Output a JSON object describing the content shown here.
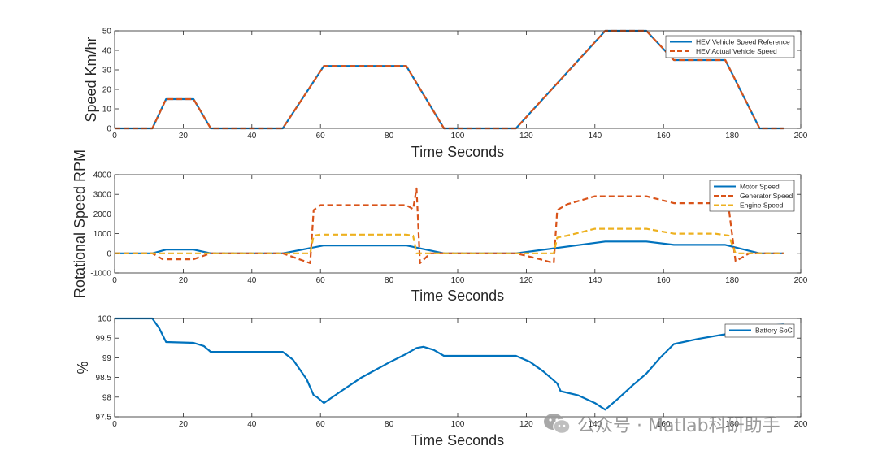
{
  "chart_data": [
    {
      "type": "line",
      "xlabel": "Time Seconds",
      "ylabel": "Speed Km/hr",
      "xlim": [
        0,
        200
      ],
      "ylim": [
        0,
        50
      ],
      "xticks": [
        "0",
        "20",
        "40",
        "60",
        "80",
        "100",
        "120",
        "140",
        "160",
        "180",
        "200"
      ],
      "yticks": [
        "0",
        "10",
        "20",
        "30",
        "40",
        "50"
      ],
      "grid": false,
      "legend_position": "top-right",
      "series": [
        {
          "name": "HEV Vehicle Speed Reference",
          "color": "#0072BD",
          "style": "solid",
          "points": [
            [
              0,
              0
            ],
            [
              11,
              0
            ],
            [
              15,
              15
            ],
            [
              23,
              15
            ],
            [
              28,
              0
            ],
            [
              49,
              0
            ],
            [
              61,
              32
            ],
            [
              85,
              32
            ],
            [
              96,
              0
            ],
            [
              117,
              0
            ],
            [
              143,
              50
            ],
            [
              155,
              50
            ],
            [
              163,
              35
            ],
            [
              178,
              35
            ],
            [
              188,
              0
            ],
            [
              195,
              0
            ]
          ]
        },
        {
          "name": "HEV Actual Vehicle Speed",
          "color": "#D95319",
          "style": "dashed",
          "points": [
            [
              0,
              0
            ],
            [
              11,
              0
            ],
            [
              15,
              15
            ],
            [
              23,
              15
            ],
            [
              28,
              0
            ],
            [
              49,
              0
            ],
            [
              61,
              32
            ],
            [
              85,
              32
            ],
            [
              96,
              0
            ],
            [
              117,
              0
            ],
            [
              143,
              50
            ],
            [
              155,
              50
            ],
            [
              163,
              35
            ],
            [
              178,
              35
            ],
            [
              188,
              0
            ],
            [
              195,
              0
            ]
          ]
        }
      ]
    },
    {
      "type": "line",
      "xlabel": "Time Seconds",
      "ylabel": "Rotational Speed RPM",
      "xlim": [
        0,
        200
      ],
      "ylim": [
        -1000,
        4000
      ],
      "xticks": [
        "0",
        "20",
        "40",
        "60",
        "80",
        "100",
        "120",
        "140",
        "160",
        "180",
        "200"
      ],
      "yticks": [
        "-1000",
        "0",
        "1000",
        "2000",
        "3000",
        "4000"
      ],
      "grid": false,
      "legend_position": "top-right",
      "series": [
        {
          "name": "Motor Speed",
          "color": "#0072BD",
          "style": "solid",
          "points": [
            [
              0,
              0
            ],
            [
              11,
              0
            ],
            [
              15,
              190
            ],
            [
              23,
              190
            ],
            [
              28,
              0
            ],
            [
              49,
              0
            ],
            [
              61,
              400
            ],
            [
              85,
              400
            ],
            [
              96,
              0
            ],
            [
              117,
              0
            ],
            [
              143,
              600
            ],
            [
              155,
              600
            ],
            [
              163,
              430
            ],
            [
              178,
              430
            ],
            [
              188,
              0
            ],
            [
              195,
              0
            ]
          ]
        },
        {
          "name": "Generator Speed",
          "color": "#D95319",
          "style": "dashed",
          "points": [
            [
              0,
              0
            ],
            [
              11,
              0
            ],
            [
              14,
              -300
            ],
            [
              23,
              -300
            ],
            [
              28,
              0
            ],
            [
              49,
              0
            ],
            [
              57,
              -500
            ],
            [
              58,
              2200
            ],
            [
              60,
              2450
            ],
            [
              85,
              2450
            ],
            [
              87,
              2250
            ],
            [
              88,
              3300
            ],
            [
              89,
              -500
            ],
            [
              92,
              0
            ],
            [
              117,
              0
            ],
            [
              124,
              -300
            ],
            [
              128,
              -500
            ],
            [
              129,
              2200
            ],
            [
              132,
              2500
            ],
            [
              140,
              2900
            ],
            [
              155,
              2900
            ],
            [
              163,
              2550
            ],
            [
              175,
              2550
            ],
            [
              179,
              2300
            ],
            [
              181,
              -400
            ],
            [
              185,
              0
            ],
            [
              195,
              0
            ]
          ]
        },
        {
          "name": "Engine Speed",
          "color": "#EDB120",
          "style": "dashed",
          "points": [
            [
              0,
              0
            ],
            [
              49,
              0
            ],
            [
              57,
              0
            ],
            [
              58,
              900
            ],
            [
              60,
              950
            ],
            [
              85,
              950
            ],
            [
              87,
              900
            ],
            [
              88,
              0
            ],
            [
              128,
              0
            ],
            [
              129,
              800
            ],
            [
              132,
              900
            ],
            [
              140,
              1250
            ],
            [
              155,
              1250
            ],
            [
              163,
              1000
            ],
            [
              175,
              1000
            ],
            [
              179,
              900
            ],
            [
              181,
              0
            ],
            [
              195,
              0
            ]
          ]
        }
      ]
    },
    {
      "type": "line",
      "xlabel": "Time Seconds",
      "ylabel": "%",
      "xlim": [
        0,
        200
      ],
      "ylim": [
        97.5,
        100
      ],
      "xticks": [
        "0",
        "20",
        "40",
        "60",
        "80",
        "100",
        "120",
        "140",
        "160",
        "180",
        "200"
      ],
      "yticks": [
        "97.5",
        "98",
        "98.5",
        "99",
        "99.5",
        "100"
      ],
      "grid": false,
      "legend_position": "top-right",
      "series": [
        {
          "name": "Battery SoC",
          "color": "#0072BD",
          "style": "solid",
          "points": [
            [
              0,
              100
            ],
            [
              11,
              100
            ],
            [
              13,
              99.75
            ],
            [
              15,
              99.4
            ],
            [
              23,
              99.38
            ],
            [
              26,
              99.3
            ],
            [
              28,
              99.15
            ],
            [
              49,
              99.15
            ],
            [
              52,
              98.95
            ],
            [
              56,
              98.45
            ],
            [
              58,
              98.05
            ],
            [
              59,
              98.0
            ],
            [
              61,
              97.85
            ],
            [
              66,
              98.15
            ],
            [
              72,
              98.5
            ],
            [
              80,
              98.88
            ],
            [
              85,
              99.1
            ],
            [
              88,
              99.25
            ],
            [
              90,
              99.28
            ],
            [
              93,
              99.2
            ],
            [
              96,
              99.05
            ],
            [
              117,
              99.05
            ],
            [
              121,
              98.9
            ],
            [
              125,
              98.65
            ],
            [
              129,
              98.35
            ],
            [
              130,
              98.15
            ],
            [
              135,
              98.05
            ],
            [
              140,
              97.85
            ],
            [
              143,
              97.68
            ],
            [
              147,
              97.98
            ],
            [
              151,
              98.3
            ],
            [
              155,
              98.6
            ],
            [
              159,
              99.0
            ],
            [
              163,
              99.35
            ],
            [
              170,
              99.48
            ],
            [
              178,
              99.6
            ],
            [
              183,
              99.7
            ],
            [
              188,
              99.8
            ],
            [
              195,
              99.85
            ]
          ]
        }
      ]
    }
  ],
  "watermark": {
    "text": "公众号 · Matlab科研助手",
    "icon": "wechat-icon"
  }
}
